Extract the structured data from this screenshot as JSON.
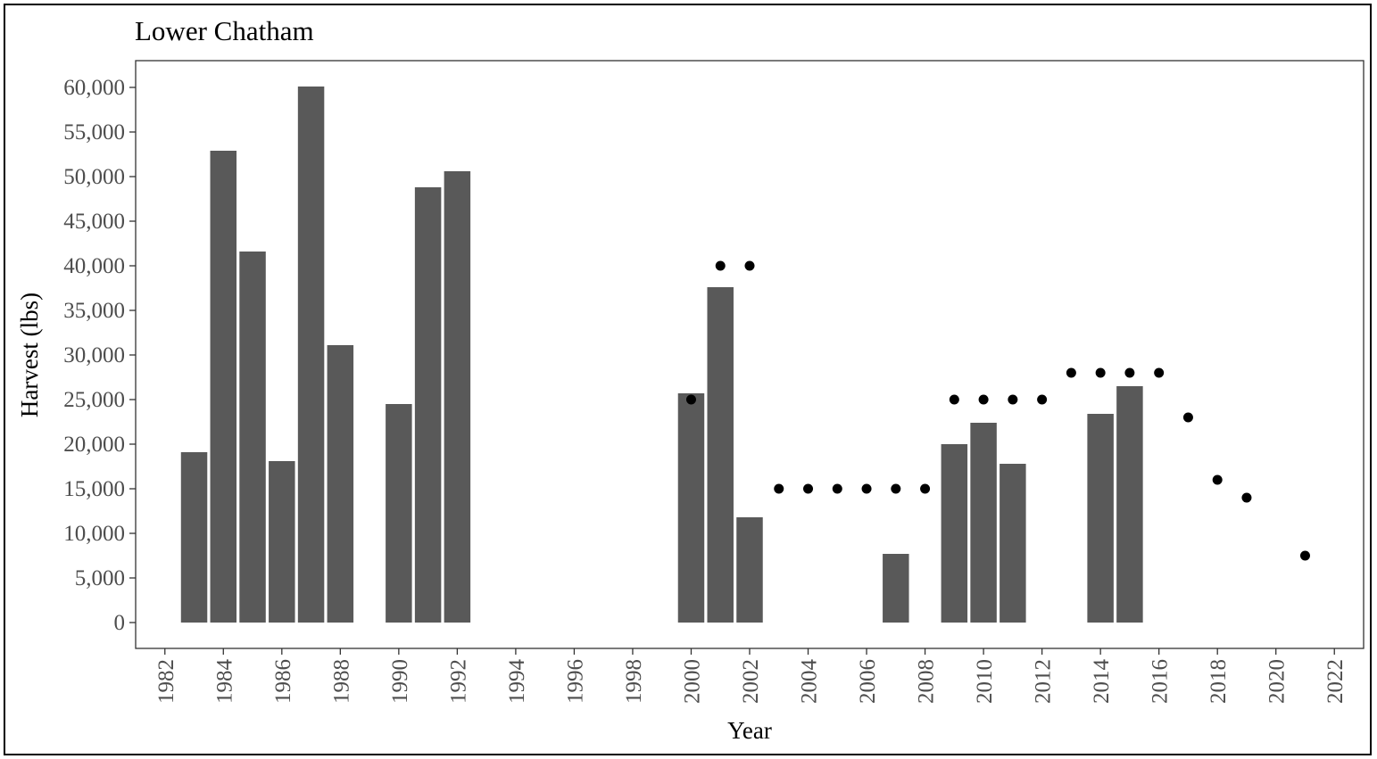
{
  "chart_data": {
    "type": "bar",
    "title": "Lower Chatham",
    "xlabel": "Year",
    "ylabel": "Harvest (lbs)",
    "xlim": [
      1981,
      2023
    ],
    "ylim": [
      -2900,
      63000
    ],
    "x_ticks": [
      1982,
      1984,
      1986,
      1988,
      1990,
      1992,
      1994,
      1996,
      1998,
      2000,
      2002,
      2004,
      2006,
      2008,
      2010,
      2012,
      2014,
      2016,
      2018,
      2020,
      2022
    ],
    "y_ticks": [
      0,
      5000,
      10000,
      15000,
      20000,
      25000,
      30000,
      35000,
      40000,
      45000,
      50000,
      55000,
      60000
    ],
    "y_tick_labels": [
      "0",
      "5,000",
      "10,000",
      "15,000",
      "20,000",
      "25,000",
      "30,000",
      "35,000",
      "40,000",
      "45,000",
      "50,000",
      "55,000",
      "60,000"
    ],
    "grid": false,
    "bar_color": "#595959",
    "point_color": "#000000",
    "series": [
      {
        "kind": "bar",
        "x": [
          1983,
          1984,
          1985,
          1986,
          1987,
          1988,
          1990,
          1991,
          1992,
          2000,
          2001,
          2002,
          2007,
          2009,
          2010,
          2011,
          2014,
          2015
        ],
        "values": [
          19100,
          52900,
          41600,
          18100,
          60100,
          31100,
          24500,
          48800,
          50600,
          25700,
          37600,
          11800,
          7700,
          20000,
          22400,
          17800,
          23400,
          26500
        ]
      },
      {
        "kind": "point",
        "x": [
          2000,
          2001,
          2002,
          2003,
          2004,
          2005,
          2006,
          2007,
          2008,
          2009,
          2010,
          2011,
          2012,
          2013,
          2014,
          2015,
          2016,
          2017,
          2018,
          2019,
          2021
        ],
        "values": [
          25000,
          40000,
          40000,
          15000,
          15000,
          15000,
          15000,
          15000,
          15000,
          25000,
          25000,
          25000,
          25000,
          28000,
          28000,
          28000,
          28000,
          23000,
          16000,
          14000,
          7500
        ]
      }
    ]
  }
}
